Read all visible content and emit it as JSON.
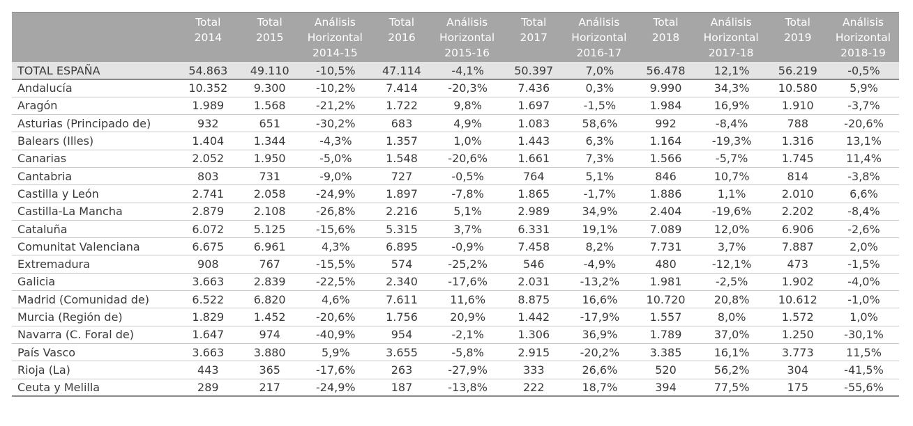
{
  "table": {
    "headers": [
      "",
      "Total\n2014",
      "Total\n2015",
      "Análisis\nHorizontal\n2014-15",
      "Total\n2016",
      "Análisis\nHorizontal\n2015-16",
      "Total\n2017",
      "Análisis\nHorizontal\n2016-17",
      "Total\n2018",
      "Análisis\nHorizontal\n2017-18",
      "Total\n2019",
      "Análisis\nHorizontal\n2018-19"
    ],
    "total_row": [
      "TOTAL ESPAÑA",
      "54.863",
      "49.110",
      "-10,5%",
      "47.114",
      "-4,1%",
      "50.397",
      "7,0%",
      "56.478",
      "12,1%",
      "56.219",
      "-0,5%"
    ],
    "rows": [
      [
        "Andalucía",
        "10.352",
        "9.300",
        "-10,2%",
        "7.414",
        "-20,3%",
        "7.436",
        "0,3%",
        "9.990",
        "34,3%",
        "10.580",
        "5,9%"
      ],
      [
        "Aragón",
        "1.989",
        "1.568",
        "-21,2%",
        "1.722",
        "9,8%",
        "1.697",
        "-1,5%",
        "1.984",
        "16,9%",
        "1.910",
        "-3,7%"
      ],
      [
        "Asturias (Principado de)",
        "932",
        "651",
        "-30,2%",
        "683",
        "4,9%",
        "1.083",
        "58,6%",
        "992",
        "-8,4%",
        "788",
        "-20,6%"
      ],
      [
        "Balears (Illes)",
        "1.404",
        "1.344",
        "-4,3%",
        "1.357",
        "1,0%",
        "1.443",
        "6,3%",
        "1.164",
        "-19,3%",
        "1.316",
        "13,1%"
      ],
      [
        "Canarias",
        "2.052",
        "1.950",
        "-5,0%",
        "1.548",
        "-20,6%",
        "1.661",
        "7,3%",
        "1.566",
        "-5,7%",
        "1.745",
        "11,4%"
      ],
      [
        "Cantabria",
        "803",
        "731",
        "-9,0%",
        "727",
        "-0,5%",
        "764",
        "5,1%",
        "846",
        "10,7%",
        "814",
        "-3,8%"
      ],
      [
        "Castilla y León",
        "2.741",
        "2.058",
        "-24,9%",
        "1.897",
        "-7,8%",
        "1.865",
        "-1,7%",
        "1.886",
        "1,1%",
        "2.010",
        "6,6%"
      ],
      [
        "Castilla-La Mancha",
        "2.879",
        "2.108",
        "-26,8%",
        "2.216",
        "5,1%",
        "2.989",
        "34,9%",
        "2.404",
        "-19,6%",
        "2.202",
        "-8,4%"
      ],
      [
        "Cataluña",
        "6.072",
        "5.125",
        "-15,6%",
        "5.315",
        "3,7%",
        "6.331",
        "19,1%",
        "7.089",
        "12,0%",
        "6.906",
        "-2,6%"
      ],
      [
        "Comunitat Valenciana",
        "6.675",
        "6.961",
        "4,3%",
        "6.895",
        "-0,9%",
        "7.458",
        "8,2%",
        "7.731",
        "3,7%",
        "7.887",
        "2,0%"
      ],
      [
        "Extremadura",
        "908",
        "767",
        "-15,5%",
        "574",
        "-25,2%",
        "546",
        "-4,9%",
        "480",
        "-12,1%",
        "473",
        "-1,5%"
      ],
      [
        "Galicia",
        "3.663",
        "2.839",
        "-22,5%",
        "2.340",
        "-17,6%",
        "2.031",
        "-13,2%",
        "1.981",
        "-2,5%",
        "1.902",
        "-4,0%"
      ],
      [
        "Madrid (Comunidad de)",
        "6.522",
        "6.820",
        "4,6%",
        "7.611",
        "11,6%",
        "8.875",
        "16,6%",
        "10.720",
        "20,8%",
        "10.612",
        "-1,0%"
      ],
      [
        "Murcia (Región de)",
        "1.829",
        "1.452",
        "-20,6%",
        "1.756",
        "20,9%",
        "1.442",
        "-17,9%",
        "1.557",
        "8,0%",
        "1.572",
        "1,0%"
      ],
      [
        "Navarra (C. Foral de)",
        "1.647",
        "974",
        "-40,9%",
        "954",
        "-2,1%",
        "1.306",
        "36,9%",
        "1.789",
        "37,0%",
        "1.250",
        "-30,1%"
      ],
      [
        "País Vasco",
        "3.663",
        "3.880",
        "5,9%",
        "3.655",
        "-5,8%",
        "2.915",
        "-20,2%",
        "3.385",
        "16,1%",
        "3.773",
        "11,5%"
      ],
      [
        "Rioja (La)",
        "443",
        "365",
        "-17,6%",
        "263",
        "-27,9%",
        "333",
        "26,6%",
        "520",
        "56,2%",
        "304",
        "-41,5%"
      ],
      [
        "Ceuta y Melilla",
        "289",
        "217",
        "-24,9%",
        "187",
        "-13,8%",
        "222",
        "18,7%",
        "394",
        "77,5%",
        "175",
        "-55,6%"
      ]
    ]
  }
}
